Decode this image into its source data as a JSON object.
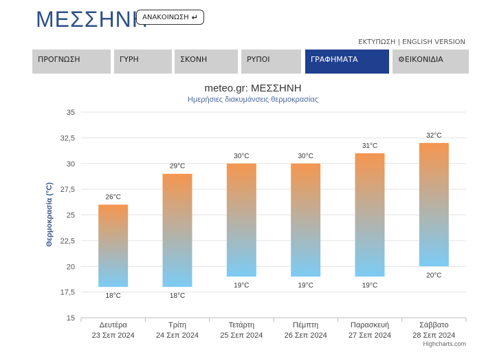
{
  "header": {
    "title": "ΜΕΣΣΗΝΗ",
    "announce_label": "ΑΝΑΚΟΙΝΩΣΗ",
    "announce_icon": "arrow-down-return-icon"
  },
  "toplinks": {
    "print": "ΕΚΤΥΠΩΣΗ",
    "separator": "|",
    "english": "ENGLISH VERSION"
  },
  "tabs": [
    {
      "label": "ΠΡΟΓΝΩΣΗ",
      "active": false
    },
    {
      "label": "ΓΥΡΗ",
      "active": false
    },
    {
      "label": "ΣΚΟΝΗ",
      "active": false
    },
    {
      "label": "ΡΥΠΟΙ",
      "active": false
    },
    {
      "label": "ΓΡΑΦΗΜΑΤΑ",
      "active": true
    },
    {
      "label": "ΕΙΚΟΝΙΔΙΑ",
      "active": false,
      "icon": "gear-icon"
    }
  ],
  "colors": {
    "brand": "#2c4f8a",
    "active_tab": "#1f3f8f",
    "tab": "#cfcfcf",
    "bar_top": "#f5964f",
    "bar_bottom": "#7ccbf5"
  },
  "chart_data": {
    "type": "bar",
    "subtype": "columnrange",
    "title": "meteo.gr: ΜΕΣΣΗΝΗ",
    "subtitle": "Ημερήσιες διακυμάνσεις θερμοκρασίας",
    "ylabel": "Θερμοκρασία (°C)",
    "ylim": [
      15,
      35
    ],
    "yticks": [
      "15",
      "17,5",
      "20",
      "22,5",
      "25",
      "27,5",
      "30",
      "32,5",
      "35"
    ],
    "grid": true,
    "categories": [
      [
        "Δευτέρα",
        "23 Σεπ 2024"
      ],
      [
        "Τρίτη",
        "24 Σεπ 2024"
      ],
      [
        "Τετάρτη",
        "25 Σεπ 2024"
      ],
      [
        "Πέμπτη",
        "26 Σεπ 2024"
      ],
      [
        "Παρασκευή",
        "27 Σεπ 2024"
      ],
      [
        "Σάββατο",
        "28 Σεπ 2024"
      ]
    ],
    "low": [
      18,
      18,
      19,
      19,
      19,
      20
    ],
    "high": [
      26,
      29,
      30,
      30,
      31,
      32
    ],
    "low_labels": [
      "18°C",
      "18°C",
      "19°C",
      "19°C",
      "19°C",
      "20°C"
    ],
    "high_labels": [
      "26°C",
      "29°C",
      "30°C",
      "30°C",
      "31°C",
      "32°C"
    ],
    "credits": "Highcharts.com"
  }
}
